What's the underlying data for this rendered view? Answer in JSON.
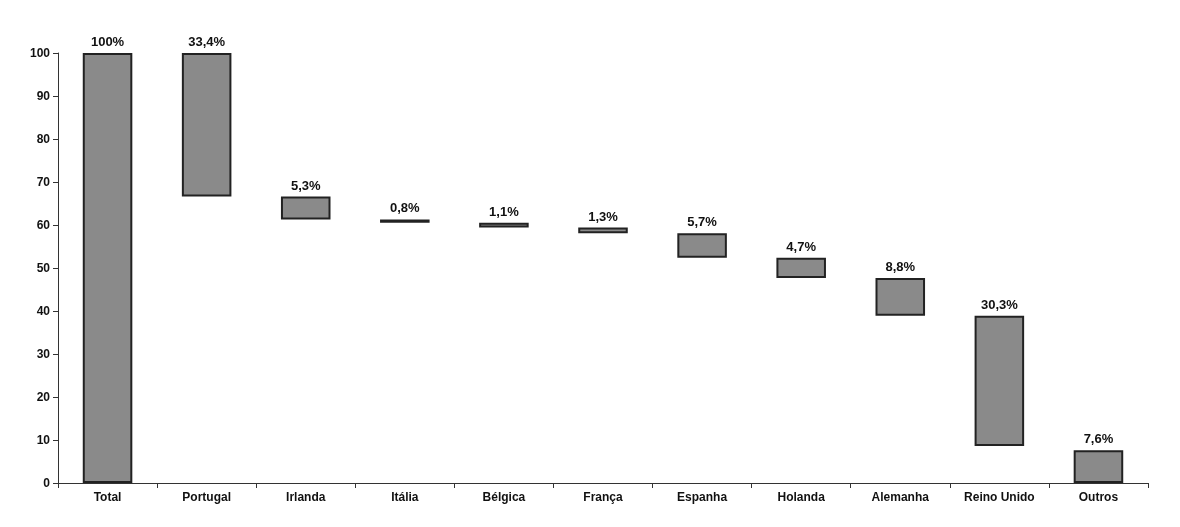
{
  "chart_data": {
    "type": "bar",
    "categories": [
      "Total",
      "Portugal",
      "Irlanda",
      "Itália",
      "Bélgica",
      "França",
      "Espanha",
      "Holanda",
      "Alemanha",
      "Reino Unido",
      "Outros"
    ],
    "values": [
      100,
      33.4,
      5.3,
      0.8,
      1.1,
      1.3,
      5.7,
      4.7,
      8.8,
      30.3,
      7.6
    ],
    "base": [
      0,
      66.6,
      61.3,
      60.5,
      59.4,
      58.1,
      52.4,
      47.7,
      38.9,
      8.6,
      0
    ],
    "value_labels": [
      "100%",
      "33,4%",
      "5,3%",
      "0,8%",
      "1,1%",
      "1,3%",
      "5,7%",
      "4,7%",
      "8,8%",
      "30,3%",
      "7,6%"
    ],
    "color": "#8a8a8a",
    "ylim": [
      0,
      100
    ],
    "yticks": [
      0,
      10,
      20,
      30,
      40,
      50,
      60,
      70,
      80,
      90,
      100
    ],
    "grid": false
  }
}
